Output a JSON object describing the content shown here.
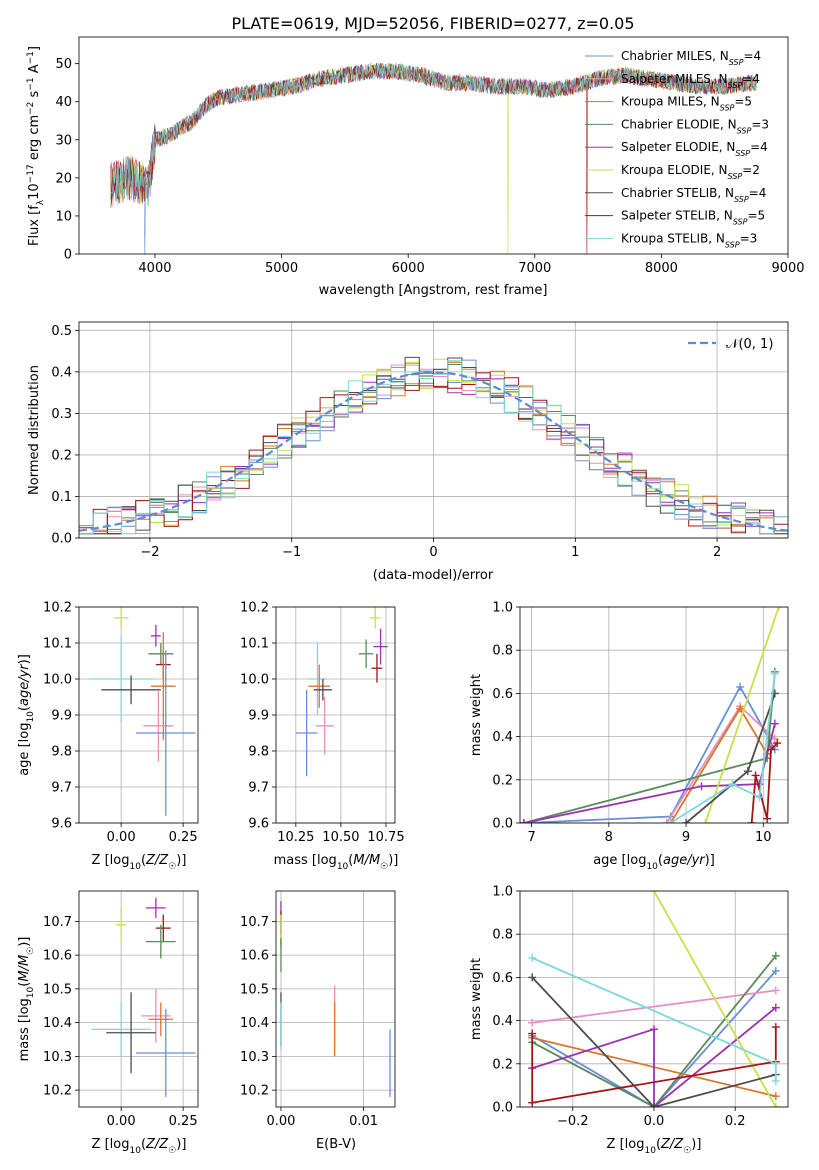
{
  "figure_title": "PLATE=0619, MJD=52056, FIBERID=0277, z=0.05",
  "chart_data": [
    {
      "id": "spectrum",
      "type": "line",
      "xlabel": "wavelength [Angstrom, rest frame]",
      "ylabel": "Flux [f_λ 10^-17 erg cm^-2 s^-1 A^-1]",
      "xlim": [
        3400,
        9000
      ],
      "ylim": [
        0,
        57
      ],
      "xticks": [
        4000,
        5000,
        6000,
        7000,
        8000,
        9000
      ],
      "yticks": [
        0,
        10,
        20,
        30,
        40,
        50
      ],
      "grid": false,
      "legend_position": "top-right",
      "spectrum_envelope": {
        "x": [
          3650,
          3800,
          3950,
          4000,
          4100,
          4200,
          4300,
          4400,
          4500,
          4700,
          4900,
          5100,
          5300,
          5500,
          5700,
          5900,
          6100,
          6300,
          6500,
          6700,
          6900,
          7100,
          7300,
          7500,
          7700,
          7900,
          8100,
          8300,
          8500,
          8750
        ],
        "y": [
          18,
          20,
          18,
          30,
          31,
          33,
          35,
          39,
          41,
          42,
          43,
          44,
          46,
          47,
          48,
          48,
          47,
          45,
          45,
          44,
          44,
          43,
          44,
          46,
          47,
          46,
          45,
          44,
          44,
          45
        ]
      },
      "dropouts": [
        {
          "x": 3920,
          "label": "Chabrier MILES"
        },
        {
          "x": 6790,
          "label": "Kroupa ELODIE"
        },
        {
          "x": 7410,
          "label": "Salpeter STELIB"
        }
      ],
      "series": [
        {
          "name": "Chabrier MILES, N_SSP=4",
          "label": "Chabrier MILES, N",
          "sub": "SSP",
          "suffix": "=4",
          "color": "#6a8fd8"
        },
        {
          "name": "Salpeter MILES, N_SSP=4",
          "label": "Salpeter MILES, N",
          "sub": "SSP",
          "suffix": "=4",
          "color": "#e88fbf"
        },
        {
          "name": "Kroupa MILES, N_SSP=5",
          "label": "Kroupa MILES, N",
          "sub": "SSP",
          "suffix": "=5",
          "color": "#d9772a"
        },
        {
          "name": "Chabrier ELODIE, N_SSP=3",
          "label": "Chabrier ELODIE, N",
          "sub": "SSP",
          "suffix": "=3",
          "color": "#5a8a5e"
        },
        {
          "name": "Salpeter ELODIE, N_SSP=4",
          "label": "Salpeter ELODIE, N",
          "sub": "SSP",
          "suffix": "=4",
          "color": "#9a33b0"
        },
        {
          "name": "Kroupa ELODIE, N_SSP=2",
          "label": "Kroupa ELODIE, N",
          "sub": "SSP",
          "suffix": "=2",
          "color": "#c9e04a"
        },
        {
          "name": "Chabrier STELIB, N_SSP=4",
          "label": "Chabrier STELIB, N",
          "sub": "SSP",
          "suffix": "=4",
          "color": "#4d4d4d"
        },
        {
          "name": "Salpeter STELIB, N_SSP=5",
          "label": "Salpeter STELIB, N",
          "sub": "SSP",
          "suffix": "=5",
          "color": "#a31515"
        },
        {
          "name": "Kroupa STELIB, N_SSP=3",
          "label": "Kroupa STELIB, N",
          "sub": "SSP",
          "suffix": "=3",
          "color": "#7fd6dc"
        }
      ]
    },
    {
      "id": "residuals",
      "type": "histogram",
      "xlabel": "(data-model)/error",
      "ylabel": "Normed distribution",
      "xlim": [
        -2.5,
        2.5
      ],
      "ylim": [
        0,
        0.52
      ],
      "xticks": [
        -2,
        -1,
        0,
        1,
        2
      ],
      "yticks": [
        0.0,
        0.1,
        0.2,
        0.3,
        0.4,
        0.5
      ],
      "grid": true,
      "legend": "𝒩(0, 1)",
      "legend_position": "top-right",
      "bin_width": 0.1,
      "bins_start": -2.5,
      "reference_curve": "N(0,1)",
      "reference_color": "#5b8bd6"
    },
    {
      "id": "age_vs_Z",
      "type": "errorbar",
      "xlabel": "Z [log10(Z/Z☉)]",
      "ylabel": "age  [log10(age/yr)]",
      "xlim": [
        -0.17,
        0.31
      ],
      "ylim": [
        9.6,
        10.2
      ],
      "xticks": [
        0.0,
        0.25
      ],
      "yticks": [
        9.6,
        9.7,
        9.8,
        9.9,
        10.0,
        10.1,
        10.2
      ],
      "points": [
        {
          "x": 0.0,
          "y": 10.17,
          "xerr": 0.03,
          "yerr": 0.03,
          "color": "#c9e04a"
        },
        {
          "x": 0.14,
          "y": 10.12,
          "xerr": 0.02,
          "yerr": 0.03,
          "color": "#9a33b0"
        },
        {
          "x": 0.16,
          "y": 10.07,
          "xerr": 0.05,
          "yerr": 0.03,
          "color": "#5a8a5e"
        },
        {
          "x": 0.17,
          "y": 10.04,
          "xerr": 0.03,
          "yerr": 0.04,
          "color": "#a31515"
        },
        {
          "x": 0.0,
          "y": 10.0,
          "xerr": 0.13,
          "yerr": 0.12,
          "color": "#7fd6dc"
        },
        {
          "x": 0.17,
          "y": 9.98,
          "xerr": 0.05,
          "yerr": 0.15,
          "color": "#d9772a"
        },
        {
          "x": 0.04,
          "y": 9.97,
          "xerr": 0.12,
          "yerr": 0.04,
          "color": "#4d4d4d"
        },
        {
          "x": 0.15,
          "y": 9.87,
          "xerr": 0.06,
          "yerr": 0.1,
          "color": "#e88fbf"
        },
        {
          "x": 0.18,
          "y": 9.85,
          "xerr": 0.12,
          "yerr": 0.23,
          "color": "#6a8fd8"
        }
      ]
    },
    {
      "id": "age_vs_mass",
      "type": "errorbar",
      "xlabel": "mass [log10(M/M☉)]",
      "ylabel": "",
      "xlim": [
        10.14,
        10.8
      ],
      "ylim": [
        9.6,
        10.2
      ],
      "xticks": [
        10.25,
        10.5,
        10.75
      ],
      "yticks": [
        9.6,
        9.7,
        9.8,
        9.9,
        10.0,
        10.1,
        10.2
      ],
      "points": [
        {
          "x": 10.69,
          "y": 10.17,
          "xerr": 0.03,
          "yerr": 0.03,
          "color": "#c9e04a"
        },
        {
          "x": 10.72,
          "y": 10.09,
          "xerr": 0.04,
          "yerr": 0.05,
          "color": "#9a33b0"
        },
        {
          "x": 10.64,
          "y": 10.07,
          "xerr": 0.04,
          "yerr": 0.04,
          "color": "#5a8a5e"
        },
        {
          "x": 10.7,
          "y": 10.03,
          "xerr": 0.03,
          "yerr": 0.04,
          "color": "#a31515"
        },
        {
          "x": 10.37,
          "y": 10.0,
          "xerr": 0.05,
          "yerr": 0.1,
          "color": "#7fd6dc"
        },
        {
          "x": 10.38,
          "y": 9.98,
          "xerr": 0.06,
          "yerr": 0.06,
          "color": "#d9772a"
        },
        {
          "x": 10.4,
          "y": 9.97,
          "xerr": 0.05,
          "yerr": 0.03,
          "color": "#4d4d4d"
        },
        {
          "x": 10.41,
          "y": 9.87,
          "xerr": 0.05,
          "yerr": 0.08,
          "color": "#e88fbf"
        },
        {
          "x": 10.31,
          "y": 9.85,
          "xerr": 0.06,
          "yerr": 0.12,
          "color": "#6a8fd8"
        }
      ]
    },
    {
      "id": "weight_vs_age",
      "type": "line",
      "xlabel": "age  [log10(age/yr)]",
      "ylabel": "mass weight",
      "xlim": [
        6.85,
        10.32
      ],
      "ylim": [
        0,
        1.0
      ],
      "xticks": [
        7,
        8,
        9,
        10
      ],
      "yticks": [
        0.0,
        0.2,
        0.4,
        0.6,
        0.8,
        1.0
      ],
      "series": [
        {
          "color": "#6a8fd8",
          "points": [
            [
              6.9,
              0.0
            ],
            [
              8.8,
              0.03
            ],
            [
              9.7,
              0.63
            ],
            [
              10.15,
              0.34
            ]
          ]
        },
        {
          "color": "#e88fbf",
          "points": [
            [
              8.75,
              0.0
            ],
            [
              9.7,
              0.54
            ],
            [
              10.15,
              0.39
            ]
          ]
        },
        {
          "color": "#d9772a",
          "points": [
            [
              8.8,
              0.0
            ],
            [
              9.7,
              0.53
            ],
            [
              10.05,
              0.32
            ]
          ]
        },
        {
          "color": "#5a8a5e",
          "points": [
            [
              6.9,
              0.0
            ],
            [
              10.05,
              0.3
            ],
            [
              10.15,
              0.7
            ]
          ]
        },
        {
          "color": "#9a33b0",
          "points": [
            [
              6.9,
              0.0
            ],
            [
              9.2,
              0.17
            ],
            [
              9.95,
              0.18
            ],
            [
              10.15,
              0.46
            ]
          ]
        },
        {
          "color": "#c9e04a",
          "points": [
            [
              9.25,
              0.0
            ],
            [
              10.2,
              1.0
            ]
          ]
        },
        {
          "color": "#4d4d4d",
          "points": [
            [
              9.0,
              0.0
            ],
            [
              9.8,
              0.24
            ],
            [
              10.15,
              0.6
            ]
          ]
        },
        {
          "color": "#a31515",
          "points": [
            [
              9.85,
              0.0
            ],
            [
              9.9,
              0.22
            ],
            [
              10.05,
              0.02
            ],
            [
              10.1,
              0.34
            ],
            [
              10.18,
              0.37
            ]
          ]
        },
        {
          "color": "#7fd6dc",
          "points": [
            [
              8.8,
              0.0
            ],
            [
              9.6,
              0.18
            ],
            [
              9.95,
              0.12
            ],
            [
              10.15,
              0.69
            ]
          ]
        }
      ]
    },
    {
      "id": "mass_vs_Z",
      "type": "errorbar",
      "xlabel": "Z [log10(Z/Z☉)]",
      "ylabel": "mass [log10(M/M☉)]",
      "xlim": [
        -0.17,
        0.31
      ],
      "ylim": [
        10.15,
        10.79
      ],
      "xticks": [
        0.0,
        0.25
      ],
      "yticks": [
        10.2,
        10.3,
        10.4,
        10.5,
        10.6,
        10.7
      ],
      "points": [
        {
          "x": 0.14,
          "y": 10.74,
          "xerr": 0.04,
          "yerr": 0.03,
          "color": "#9a33b0"
        },
        {
          "x": 0.17,
          "y": 10.68,
          "xerr": 0.03,
          "yerr": 0.04,
          "color": "#a31515"
        },
        {
          "x": 0.0,
          "y": 10.69,
          "xerr": 0.02,
          "yerr": 0.05,
          "color": "#c9e04a"
        },
        {
          "x": 0.16,
          "y": 10.64,
          "xerr": 0.06,
          "yerr": 0.05,
          "color": "#5a8a5e"
        },
        {
          "x": 0.14,
          "y": 10.42,
          "xerr": 0.06,
          "yerr": 0.08,
          "color": "#e88fbf"
        },
        {
          "x": 0.16,
          "y": 10.41,
          "xerr": 0.05,
          "yerr": 0.05,
          "color": "#d9772a"
        },
        {
          "x": 0.0,
          "y": 10.38,
          "xerr": 0.12,
          "yerr": 0.08,
          "color": "#7fd6dc"
        },
        {
          "x": 0.04,
          "y": 10.37,
          "xerr": 0.1,
          "yerr": 0.12,
          "color": "#4d4d4d"
        },
        {
          "x": 0.18,
          "y": 10.31,
          "xerr": 0.12,
          "yerr": 0.13,
          "color": "#6a8fd8"
        }
      ]
    },
    {
      "id": "mass_vs_EBV",
      "type": "errorbar",
      "xlabel": "E(B-V)",
      "ylabel": "",
      "xlim": [
        -0.0006,
        0.0138
      ],
      "ylim": [
        10.15,
        10.79
      ],
      "xticks": [
        0.0,
        0.01
      ],
      "yticks": [
        10.2,
        10.3,
        10.4,
        10.5,
        10.6,
        10.7
      ],
      "points": [
        {
          "x": 0.0,
          "y": 10.71,
          "xerr": 0,
          "yerr": 0.05,
          "color": "#9a33b0"
        },
        {
          "x": 0.0,
          "y": 10.68,
          "xerr": 0,
          "yerr": 0.05,
          "color": "#a31515"
        },
        {
          "x": 0.0,
          "y": 10.67,
          "xerr": 0,
          "yerr": 0.05,
          "color": "#c9e04a"
        },
        {
          "x": 0.0,
          "y": 10.6,
          "xerr": 0,
          "yerr": 0.05,
          "color": "#5a8a5e"
        },
        {
          "x": 0.0,
          "y": 10.41,
          "xerr": 0,
          "yerr": 0.08,
          "color": "#4d4d4d"
        },
        {
          "x": 0.0,
          "y": 10.39,
          "xerr": 0,
          "yerr": 0.07,
          "color": "#7fd6dc"
        },
        {
          "x": 0.0065,
          "y": 10.42,
          "xerr": 0,
          "yerr": 0.09,
          "color": "#e88fbf"
        },
        {
          "x": 0.0065,
          "y": 10.38,
          "xerr": 0,
          "yerr": 0.08,
          "color": "#d9772a"
        },
        {
          "x": 0.0132,
          "y": 10.28,
          "xerr": 0,
          "yerr": 0.1,
          "color": "#6a8fd8"
        }
      ]
    },
    {
      "id": "weight_vs_Z",
      "type": "line",
      "xlabel": "Z [log10(Z/Z☉)]",
      "ylabel": "mass weight",
      "xlim": [
        -0.33,
        0.33
      ],
      "ylim": [
        0,
        1.0
      ],
      "xticks": [
        -0.2,
        0.0,
        0.2
      ],
      "yticks": [
        0.0,
        0.2,
        0.4,
        0.6,
        0.8,
        1.0
      ],
      "series": [
        {
          "color": "#6a8fd8",
          "points": [
            [
              -0.3,
              0.33
            ],
            [
              0.0,
              0.0
            ],
            [
              0.3,
              0.63
            ]
          ]
        },
        {
          "color": "#e88fbf",
          "points": [
            [
              -0.3,
              0.39
            ],
            [
              0.3,
              0.54
            ]
          ]
        },
        {
          "color": "#d9772a",
          "points": [
            [
              -0.3,
              0.32
            ],
            [
              0.3,
              0.05
            ]
          ]
        },
        {
          "color": "#5a8a5e",
          "points": [
            [
              -0.3,
              0.3
            ],
            [
              0.0,
              0.0
            ],
            [
              0.3,
              0.7
            ]
          ]
        },
        {
          "color": "#9a33b0",
          "points": [
            [
              -0.3,
              0.18
            ],
            [
              0.0,
              0.36
            ],
            [
              0.0,
              0.0
            ],
            [
              0.3,
              0.46
            ]
          ]
        },
        {
          "color": "#c9e04a",
          "points": [
            [
              0.0,
              1.0
            ],
            [
              0.3,
              0.0
            ]
          ]
        },
        {
          "color": "#4d4d4d",
          "points": [
            [
              -0.3,
              0.6
            ],
            [
              0.0,
              0.0
            ],
            [
              0.3,
              0.15
            ]
          ]
        },
        {
          "color": "#a31515",
          "points": [
            [
              -0.3,
              0.34
            ],
            [
              -0.3,
              0.02
            ],
            [
              0.3,
              0.21
            ],
            [
              0.3,
              0.37
            ]
          ]
        },
        {
          "color": "#7fd6dc",
          "points": [
            [
              -0.3,
              0.69
            ],
            [
              0.3,
              0.2
            ],
            [
              0.3,
              0.12
            ]
          ]
        }
      ]
    }
  ]
}
